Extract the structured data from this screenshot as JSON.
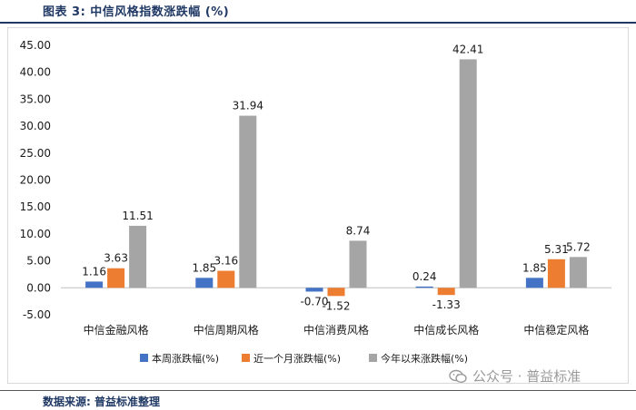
{
  "figure_title": "图表 3:  中信风格指数涨跌幅 (%)",
  "source_text": "数据来源: 普益标准整理",
  "watermark_text": "公众号 · 普益标准",
  "watermark_icon": "wechat-icon",
  "chart_data": {
    "type": "bar",
    "categories": [
      "中信金融风格",
      "中信周期风格",
      "中信消费风格",
      "中信成长风格",
      "中信稳定风格"
    ],
    "series": [
      {
        "name": "本周涨跌幅(%)",
        "color": "#4472c4",
        "values": [
          1.16,
          1.85,
          -0.7,
          0.24,
          1.85
        ],
        "labels": [
          "1.16",
          "1.85",
          "-0.70",
          "0.24",
          "1.85"
        ]
      },
      {
        "name": "近一个月涨跌幅(%)",
        "color": "#ed7d31",
        "values": [
          3.63,
          3.16,
          -1.52,
          -1.33,
          5.31
        ],
        "labels": [
          "3.63",
          "3.16",
          "-1.52",
          "-1.33",
          "5.31"
        ]
      },
      {
        "name": "今年以来涨跌幅(%)",
        "color": "#a5a5a5",
        "values": [
          11.51,
          31.94,
          8.74,
          42.41,
          5.72
        ],
        "labels": [
          "11.51",
          "31.94",
          "8.74",
          "42.41",
          "5.72"
        ]
      }
    ],
    "yticks": [
      45,
      40,
      35,
      30,
      25,
      20,
      15,
      10,
      5,
      0,
      -5
    ],
    "ytick_labels": [
      "45.00",
      "40.00",
      "35.00",
      "30.00",
      "25.00",
      "20.00",
      "15.00",
      "10.00",
      "5.00",
      "0.00",
      "-5.00"
    ],
    "ylim": [
      -5,
      45
    ],
    "grid": false,
    "legend_position": "bottom"
  }
}
